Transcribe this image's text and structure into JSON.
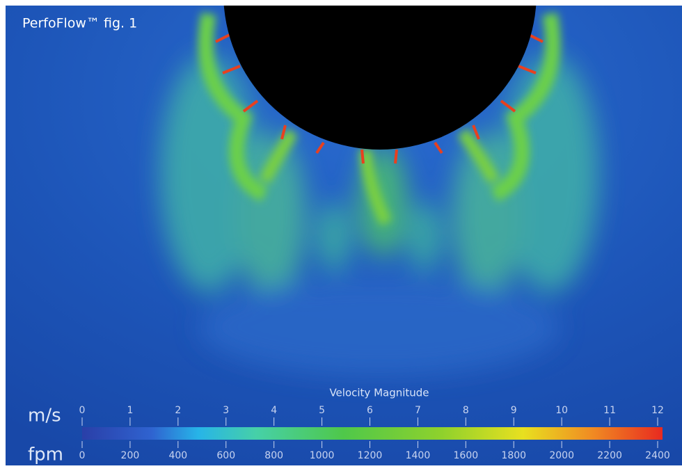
{
  "figure": {
    "title": "PerfoFlow™ fig. 1"
  },
  "colorbar": {
    "title": "Velocity Magnitude",
    "scales": [
      {
        "unit": "m/s",
        "ticks": [
          0,
          1,
          2,
          3,
          4,
          5,
          6,
          7,
          8,
          9,
          10,
          11,
          12
        ]
      },
      {
        "unit": "fpm",
        "ticks": [
          0,
          200,
          400,
          600,
          800,
          1000,
          1200,
          1400,
          1600,
          1800,
          2000,
          2200,
          2400
        ]
      }
    ]
  }
}
